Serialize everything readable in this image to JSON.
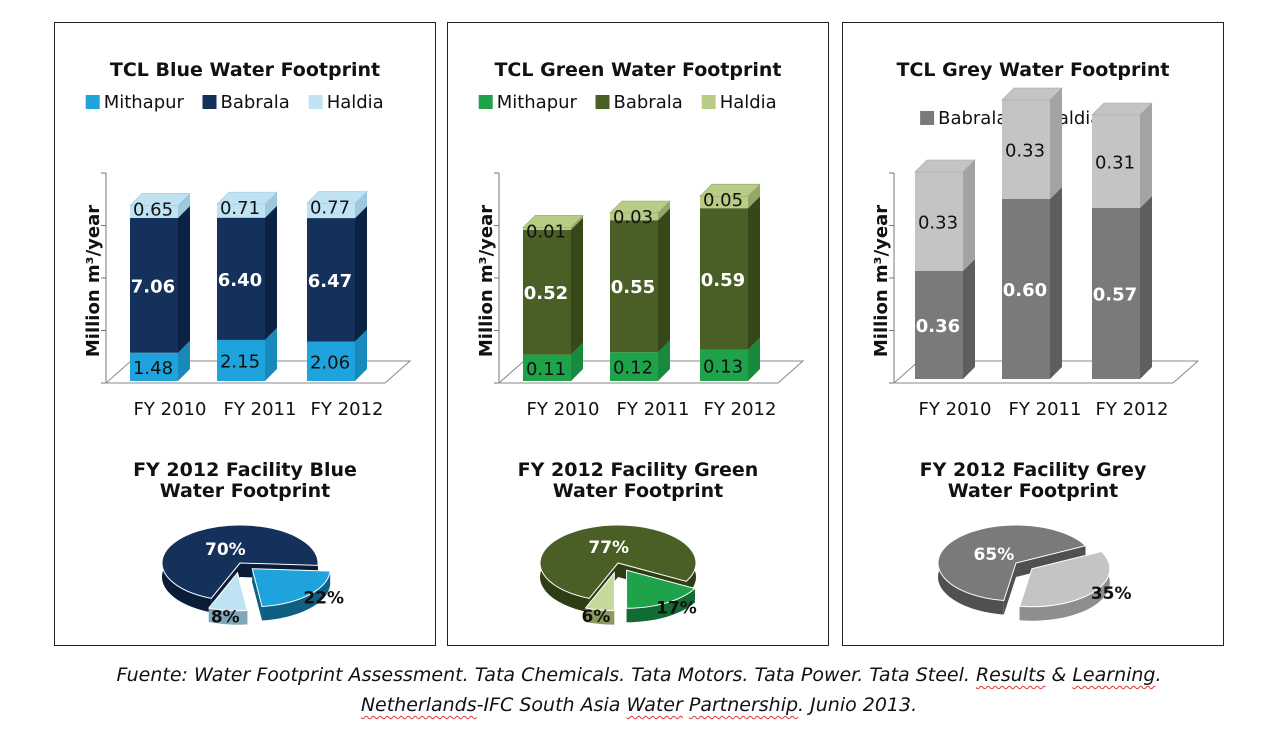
{
  "chart_data": [
    {
      "type": "bar",
      "stacked": true,
      "title": "TCL Blue Water Footprint",
      "ylabel": "Million m³/year",
      "categories": [
        "FY 2010",
        "FY 2011",
        "FY 2012"
      ],
      "series": [
        {
          "name": "Mithapur",
          "values": [
            "1.48",
            "2.15",
            "2.06"
          ],
          "color": "#1fa3dc",
          "side": "#1789bb"
        },
        {
          "name": "Babrala",
          "values": [
            "7.06",
            "6.40",
            "6.47"
          ],
          "color": "#14315b",
          "side": "#0c2244"
        },
        {
          "name": "Haldia",
          "values": [
            "0.65",
            "0.71",
            "0.77"
          ],
          "color": "#bfe3f3",
          "side": "#9cc9dd"
        }
      ],
      "pie": {
        "title": [
          "FY 2012 Facility Blue",
          "Water Footprint"
        ],
        "slices": [
          {
            "name": "Babrala",
            "value": 70,
            "label": "70%",
            "color": "#14315b",
            "side": "#0a1c38"
          },
          {
            "name": "Mithapur",
            "value": 22,
            "label": "22%",
            "color": "#1fa3dc",
            "side": "#0f5f80"
          },
          {
            "name": "Haldia",
            "value": 8,
            "label": "8%",
            "color": "#bfe3f3",
            "side": "#7fa9bb"
          }
        ]
      }
    },
    {
      "type": "bar",
      "stacked": true,
      "title": "TCL Green Water Footprint",
      "ylabel": "Million m³/year",
      "categories": [
        "FY 2010",
        "FY 2011",
        "FY 2012"
      ],
      "series": [
        {
          "name": "Mithapur",
          "values": [
            "0.11",
            "0.12",
            "0.13"
          ],
          "color": "#1ea24a",
          "side": "#178a3d"
        },
        {
          "name": "Babrala",
          "values": [
            "0.52",
            "0.55",
            "0.59"
          ],
          "color": "#4a5f26",
          "side": "#364819"
        },
        {
          "name": "Haldia",
          "values": [
            "0.01",
            "0.03",
            "0.05"
          ],
          "color": "#b9cc86",
          "side": "#94a866"
        }
      ],
      "pie": {
        "title": [
          "FY 2012 Facility Green",
          "Water Footprint"
        ],
        "slices": [
          {
            "name": "Babrala",
            "value": 77,
            "label": "77%",
            "color": "#4a5f26",
            "side": "#2e3d14"
          },
          {
            "name": "Mithapur",
            "value": 17,
            "label": "17%",
            "color": "#1ea24a",
            "side": "#126b30"
          },
          {
            "name": "Haldia",
            "value": 6,
            "label": "6%",
            "color": "#c6d89a",
            "side": "#8a9a5e"
          }
        ]
      }
    },
    {
      "type": "bar",
      "stacked": true,
      "title": "TCL Grey Water Footprint",
      "ylabel": "Million m³/year",
      "categories": [
        "FY 2010",
        "FY 2011",
        "FY 2012"
      ],
      "series": [
        {
          "name": "Babrala",
          "values": [
            "0.36",
            "0.60",
            "0.57"
          ],
          "color": "#7a7a7a",
          "side": "#5e5e5e"
        },
        {
          "name": "Haldia",
          "values": [
            "0.33",
            "0.33",
            "0.31"
          ],
          "color": "#c4c4c4",
          "side": "#a3a3a3"
        }
      ],
      "pie": {
        "title": [
          "FY 2012 Facility Grey",
          "Water Footprint"
        ],
        "slices": [
          {
            "name": "Babrala",
            "value": 65,
            "label": "65%",
            "color": "#7a7a7a",
            "side": "#505050"
          },
          {
            "name": "Haldia",
            "value": 35,
            "label": "35%",
            "color": "#c4c4c4",
            "side": "#8e8e8e"
          }
        ]
      }
    }
  ],
  "caption": {
    "segments": [
      {
        "text": "Fuente: Water Footprint Assessment. Tata Chemicals. Tata Motors. Tata Power. Tata Steel. ",
        "u": false
      },
      {
        "text": "Results",
        "u": true
      },
      {
        "text": " & ",
        "u": false
      },
      {
        "text": "Learning",
        "u": true
      },
      {
        "text": ".",
        "u": false
      },
      {
        "br": true
      },
      {
        "text": "Netherlands",
        "u": true
      },
      {
        "text": "-IFC South Asia ",
        "u": false
      },
      {
        "text": "Water",
        "u": true
      },
      {
        "text": " ",
        "u": false
      },
      {
        "text": "Partnership",
        "u": true
      },
      {
        "text": ". Junio 2013.",
        "u": false
      }
    ]
  }
}
